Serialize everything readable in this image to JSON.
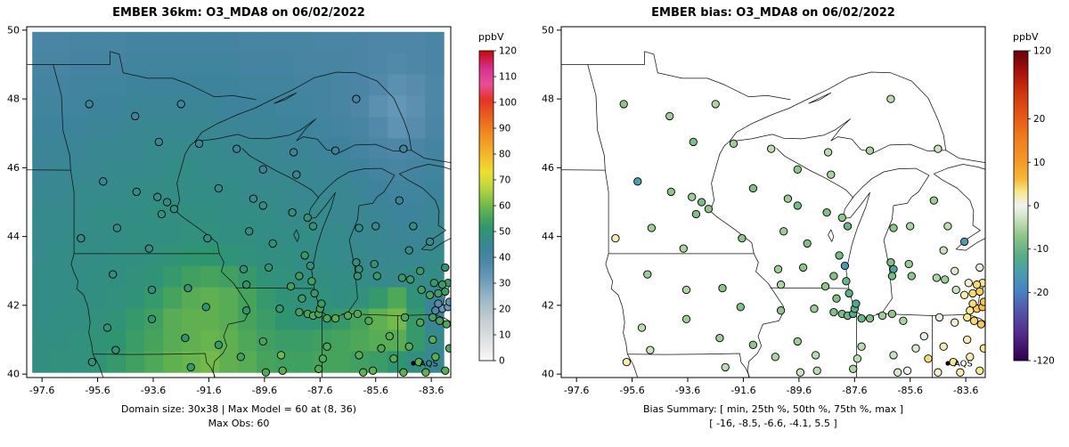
{
  "page": {
    "background": "#ffffff"
  },
  "chart_data": [
    {
      "type": "heatmap",
      "title": "EMBER 36km: O3_MDA8 on 06/02/2022",
      "caption": [
        "Domain size: 30x38 | Max Model = 60 at (8, 36)",
        "Max Obs: 60"
      ],
      "legend": "AQS",
      "xlim": [
        -98.15,
        -82.9
      ],
      "ylim": [
        39.9,
        50.1
      ],
      "x_ticks": [
        -97.6,
        -95.6,
        -93.6,
        -91.6,
        -89.6,
        -87.6,
        -85.6,
        -83.6
      ],
      "y_ticks": [
        40,
        42,
        44,
        46,
        48,
        50
      ],
      "colorbar": {
        "title": "ppbV",
        "min": 0,
        "max": 120,
        "ticks": [
          0,
          10,
          20,
          30,
          40,
          50,
          60,
          70,
          80,
          90,
          100,
          110,
          120
        ]
      },
      "palette": {
        "stops": [
          [
            0,
            "#f8f8f8"
          ],
          [
            8,
            "#e0e0e0"
          ],
          [
            16,
            "#c3cdd2"
          ],
          [
            24,
            "#9bb7c6"
          ],
          [
            32,
            "#6899b8"
          ],
          [
            38,
            "#4e86a8"
          ],
          [
            43,
            "#3d839b"
          ],
          [
            47,
            "#348c87"
          ],
          [
            51,
            "#2f9571"
          ],
          [
            55,
            "#46a35c"
          ],
          [
            59,
            "#68b44e"
          ],
          [
            63,
            "#92c645"
          ],
          [
            68,
            "#c6d83c"
          ],
          [
            73,
            "#ecdf32"
          ],
          [
            80,
            "#f4b62b"
          ],
          [
            88,
            "#f08a20"
          ],
          [
            95,
            "#e95c1c"
          ],
          [
            101,
            "#e43327"
          ],
          [
            107,
            "#e84e97"
          ],
          [
            113,
            "#d8308f"
          ],
          [
            120,
            "#c40a0a"
          ]
        ]
      },
      "grid": {
        "lon_min": -97.95,
        "lon_max": -83.15,
        "lat_min": 40.05,
        "lat_max": 49.95,
        "ncols": 22,
        "nrows": 16,
        "values": [
          [
            39,
            39,
            40,
            40,
            40,
            41,
            41,
            41,
            41,
            41,
            41,
            40,
            40,
            40,
            40,
            39,
            39,
            39,
            38,
            38,
            38,
            39
          ],
          [
            40,
            40,
            41,
            41,
            41,
            42,
            42,
            42,
            42,
            42,
            42,
            41,
            41,
            41,
            40,
            40,
            40,
            39,
            38,
            37,
            38,
            39
          ],
          [
            41,
            41,
            42,
            42,
            42,
            43,
            43,
            43,
            43,
            43,
            43,
            42,
            42,
            42,
            41,
            41,
            40,
            39,
            37,
            35,
            36,
            38
          ],
          [
            42,
            42,
            42,
            43,
            43,
            44,
            44,
            44,
            44,
            44,
            43,
            43,
            43,
            42,
            42,
            41,
            40,
            38,
            35,
            33,
            35,
            38
          ],
          [
            43,
            43,
            43,
            44,
            44,
            45,
            45,
            45,
            45,
            45,
            44,
            44,
            44,
            43,
            43,
            42,
            41,
            40,
            37,
            34,
            36,
            39
          ],
          [
            44,
            44,
            44,
            45,
            45,
            45,
            46,
            46,
            46,
            46,
            45,
            45,
            45,
            44,
            44,
            43,
            43,
            41,
            39,
            38,
            39,
            41
          ],
          [
            44,
            45,
            45,
            45,
            46,
            46,
            46,
            47,
            47,
            46,
            46,
            46,
            45,
            45,
            45,
            44,
            44,
            43,
            41,
            40,
            41,
            42
          ],
          [
            45,
            45,
            46,
            46,
            46,
            47,
            47,
            47,
            47,
            47,
            47,
            46,
            46,
            46,
            45,
            45,
            45,
            44,
            43,
            42,
            42,
            43
          ],
          [
            46,
            46,
            46,
            47,
            47,
            47,
            48,
            48,
            48,
            48,
            47,
            47,
            47,
            46,
            46,
            46,
            45,
            45,
            44,
            43,
            43,
            44
          ],
          [
            46,
            46,
            47,
            47,
            47,
            48,
            48,
            48,
            49,
            49,
            48,
            48,
            47,
            47,
            47,
            46,
            46,
            45,
            45,
            44,
            44,
            45
          ],
          [
            46,
            47,
            47,
            47,
            48,
            48,
            49,
            50,
            51,
            51,
            50,
            49,
            48,
            48,
            47,
            47,
            46,
            46,
            45,
            45,
            45,
            46
          ],
          [
            47,
            47,
            47,
            48,
            48,
            49,
            50,
            52,
            54,
            55,
            54,
            52,
            50,
            49,
            48,
            48,
            47,
            47,
            46,
            46,
            47,
            47
          ],
          [
            47,
            47,
            48,
            48,
            49,
            50,
            52,
            55,
            57,
            58,
            57,
            55,
            52,
            50,
            49,
            49,
            48,
            49,
            52,
            56,
            50,
            44
          ],
          [
            47,
            48,
            48,
            49,
            50,
            52,
            54,
            57,
            58,
            58,
            57,
            55,
            53,
            51,
            50,
            51,
            52,
            55,
            58,
            60,
            52,
            44
          ],
          [
            48,
            48,
            49,
            50,
            51,
            53,
            55,
            57,
            58,
            59,
            58,
            56,
            54,
            53,
            53,
            54,
            55,
            56,
            57,
            57,
            52,
            46
          ],
          [
            48,
            49,
            49,
            50,
            52,
            54,
            56,
            58,
            59,
            60,
            58,
            57,
            55,
            54,
            54,
            55,
            55,
            54,
            53,
            51,
            48,
            45
          ]
        ]
      }
    },
    {
      "type": "scatter",
      "title": "EMBER bias: O3_MDA8 on 06/02/2022",
      "caption": [
        "Bias Summary: [ min, 25th %, 50th %, 75th %, max ]",
        "[ -16, -8.5, -6.6, -4.1, 5.5 ]"
      ],
      "legend": "AQS",
      "xlim": [
        -98.15,
        -82.9
      ],
      "ylim": [
        39.9,
        50.1
      ],
      "x_ticks": [
        -97.6,
        -95.6,
        -93.6,
        -91.6,
        -89.6,
        -87.6,
        -85.6,
        -83.6
      ],
      "y_ticks": [
        40,
        42,
        44,
        46,
        48,
        50
      ],
      "colorbar": {
        "title": "ppbV",
        "ticks": [
          {
            "label": "120",
            "pos": 1.0
          },
          {
            "label": "20",
            "pos": 0.78
          },
          {
            "label": "10",
            "pos": 0.64
          },
          {
            "label": "0",
            "pos": 0.5
          },
          {
            "label": "-10",
            "pos": 0.36
          },
          {
            "label": "-20",
            "pos": 0.22
          },
          {
            "label": "-120",
            "pos": 0.0
          }
        ]
      },
      "palette": {
        "stops_p": [
          [
            0.0,
            "#2d004b"
          ],
          [
            0.08,
            "#542788"
          ],
          [
            0.16,
            "#5455a8"
          ],
          [
            0.22,
            "#4a7fc1"
          ],
          [
            0.28,
            "#4a9bb0"
          ],
          [
            0.34,
            "#5aad85"
          ],
          [
            0.4,
            "#8cc487"
          ],
          [
            0.46,
            "#cde3c0"
          ],
          [
            0.5,
            "#f2f2f2"
          ],
          [
            0.545,
            "#f7e88a"
          ],
          [
            0.585,
            "#f5b93a"
          ],
          [
            0.64,
            "#f49a28"
          ],
          [
            0.72,
            "#f07c1d"
          ],
          [
            0.78,
            "#e85c16"
          ],
          [
            0.86,
            "#d03711"
          ],
          [
            0.93,
            "#a8120c"
          ],
          [
            1.0,
            "#67000d"
          ]
        ]
      }
    }
  ],
  "stations": {
    "fields": [
      "lon",
      "lat",
      "obs_ppbv",
      "bias_ppbv"
    ],
    "rows": [
      [
        -95.9,
        47.85,
        44,
        -7
      ],
      [
        -94.25,
        47.5,
        43,
        -6
      ],
      [
        -92.6,
        47.85,
        42,
        -5
      ],
      [
        -93.4,
        46.75,
        45,
        -8
      ],
      [
        -95.4,
        45.6,
        46,
        -15
      ],
      [
        -94.2,
        45.3,
        46,
        -7
      ],
      [
        -93.45,
        45.15,
        47,
        -6
      ],
      [
        -93.1,
        45.0,
        48,
        -9
      ],
      [
        -92.85,
        44.8,
        48,
        -7
      ],
      [
        -93.3,
        44.65,
        49,
        -8
      ],
      [
        -94.9,
        44.25,
        47,
        -6
      ],
      [
        -96.2,
        43.95,
        46,
        2
      ],
      [
        -93.75,
        43.65,
        48,
        -5
      ],
      [
        -91.65,
        43.95,
        48,
        -7
      ],
      [
        -91.95,
        46.7,
        45,
        -6
      ],
      [
        -90.6,
        46.55,
        44,
        -4
      ],
      [
        -89.65,
        45.95,
        45,
        -7
      ],
      [
        -88.45,
        45.8,
        45,
        -5
      ],
      [
        -91.25,
        45.4,
        46,
        -8
      ],
      [
        -90.0,
        45.1,
        47,
        -6
      ],
      [
        -89.65,
        44.9,
        48,
        -9
      ],
      [
        -88.6,
        44.7,
        49,
        -8
      ],
      [
        -88.05,
        44.55,
        50,
        -7
      ],
      [
        -87.85,
        44.3,
        50,
        -10
      ],
      [
        -90.15,
        44.15,
        48,
        -6
      ],
      [
        -89.3,
        43.8,
        50,
        -8
      ],
      [
        -88.15,
        43.45,
        52,
        -9
      ],
      [
        -87.95,
        43.15,
        50,
        -16
      ],
      [
        -89.45,
        43.1,
        51,
        -7
      ],
      [
        -90.35,
        43.05,
        50,
        -6
      ],
      [
        -88.35,
        42.85,
        53,
        -8
      ],
      [
        -87.9,
        42.7,
        54,
        -10
      ],
      [
        -90.25,
        42.6,
        51,
        -5
      ],
      [
        -88.65,
        42.55,
        54,
        -7
      ],
      [
        -95.05,
        42.9,
        48,
        -6
      ],
      [
        -93.65,
        42.45,
        49,
        -5
      ],
      [
        -92.35,
        42.5,
        49,
        -7
      ],
      [
        -91.7,
        41.95,
        50,
        -8
      ],
      [
        -93.65,
        41.6,
        50,
        -6
      ],
      [
        -95.25,
        41.35,
        49,
        -4
      ],
      [
        -92.45,
        41.05,
        51,
        -6
      ],
      [
        -91.25,
        40.85,
        52,
        -7
      ],
      [
        -94.95,
        40.7,
        50,
        -3
      ],
      [
        -95.8,
        40.35,
        50,
        2
      ],
      [
        -92.25,
        40.2,
        52,
        -4
      ],
      [
        -90.45,
        40.5,
        54,
        -5
      ],
      [
        -90.25,
        41.85,
        51,
        -7
      ],
      [
        -89.05,
        41.9,
        52,
        -6
      ],
      [
        -88.35,
        41.8,
        54,
        -8
      ],
      [
        -88.05,
        41.75,
        55,
        -9
      ],
      [
        -87.85,
        41.7,
        56,
        -10
      ],
      [
        -87.65,
        41.75,
        55,
        -12
      ],
      [
        -87.6,
        41.9,
        54,
        -11
      ],
      [
        -87.55,
        42.05,
        53,
        -13
      ],
      [
        -88.25,
        42.2,
        53,
        -8
      ],
      [
        -87.8,
        42.35,
        52,
        -11
      ],
      [
        -89.65,
        40.95,
        55,
        -6
      ],
      [
        -89.55,
        40.05,
        56,
        -3
      ],
      [
        -88.95,
        40.1,
        57,
        -4
      ],
      [
        -89.0,
        40.55,
        60,
        -4
      ],
      [
        -87.65,
        40.15,
        56,
        -5
      ],
      [
        -87.35,
        41.62,
        56,
        -10
      ],
      [
        -87.05,
        41.62,
        57,
        -8
      ],
      [
        -86.6,
        41.7,
        56,
        -6
      ],
      [
        -86.25,
        41.75,
        56,
        -7
      ],
      [
        -85.85,
        41.55,
        56,
        -5
      ],
      [
        -87.35,
        40.8,
        56,
        -4
      ],
      [
        -86.2,
        40.55,
        57,
        -3
      ],
      [
        -85.4,
        40.75,
        56,
        -2
      ],
      [
        -84.95,
        40.45,
        57,
        4
      ],
      [
        -86.05,
        40.05,
        58,
        -2
      ],
      [
        -87.5,
        40.45,
        56,
        -4
      ],
      [
        -85.7,
        40.1,
        58,
        0
      ],
      [
        -87.05,
        46.5,
        44,
        -5
      ],
      [
        -88.55,
        46.45,
        44,
        -4
      ],
      [
        -86.3,
        48.0,
        41,
        -4
      ],
      [
        -84.6,
        46.55,
        42,
        -3
      ],
      [
        -84.75,
        45.05,
        45,
        -6
      ],
      [
        -85.6,
        44.3,
        46,
        -5
      ],
      [
        -86.2,
        44.25,
        47,
        -7
      ],
      [
        -84.25,
        44.3,
        47,
        -4
      ],
      [
        -83.65,
        43.85,
        46,
        -15
      ],
      [
        -86.3,
        43.25,
        49,
        -8
      ],
      [
        -86.2,
        43.05,
        48,
        -14
      ],
      [
        -85.65,
        43.2,
        50,
        -6
      ],
      [
        -86.25,
        42.85,
        51,
        -9
      ],
      [
        -85.55,
        42.85,
        52,
        -7
      ],
      [
        -84.65,
        42.8,
        52,
        -5
      ],
      [
        -84.35,
        42.75,
        53,
        -6
      ],
      [
        -83.95,
        42.45,
        54,
        -3
      ],
      [
        -83.65,
        42.3,
        55,
        2
      ],
      [
        -83.35,
        42.35,
        54,
        4
      ],
      [
        -83.1,
        42.4,
        53,
        5
      ],
      [
        -83.0,
        42.65,
        52,
        3
      ],
      [
        -83.2,
        42.6,
        53,
        4
      ],
      [
        -83.5,
        42.65,
        52,
        1
      ],
      [
        -84.0,
        43.0,
        52,
        -2
      ],
      [
        -83.1,
        43.1,
        50,
        -1
      ],
      [
        -84.4,
        43.6,
        47,
        -3
      ],
      [
        -84.55,
        41.65,
        56,
        -1
      ],
      [
        -84.0,
        41.5,
        56,
        1
      ],
      [
        -83.55,
        41.65,
        54,
        3
      ],
      [
        -83.3,
        41.55,
        55,
        4
      ],
      [
        -83.05,
        41.45,
        56,
        5
      ],
      [
        -83.2,
        41.9,
        33,
        5
      ],
      [
        -83.0,
        41.95,
        32,
        5.5
      ],
      [
        -82.95,
        42.1,
        34,
        5.5
      ],
      [
        -83.35,
        42.05,
        36,
        4
      ],
      [
        -83.45,
        41.85,
        38,
        3
      ],
      [
        -84.4,
        40.8,
        57,
        2
      ],
      [
        -84.05,
        40.35,
        58,
        3
      ],
      [
        -83.8,
        40.05,
        58,
        2
      ],
      [
        -83.1,
        40.1,
        57,
        3
      ],
      [
        -84.6,
        40.05,
        58,
        1
      ],
      [
        -83.45,
        40.5,
        57,
        2
      ],
      [
        -82.95,
        40.75,
        56,
        3
      ],
      [
        -83.55,
        41.0,
        57,
        2
      ],
      [
        -85.1,
        41.1,
        57,
        -1
      ]
    ]
  }
}
